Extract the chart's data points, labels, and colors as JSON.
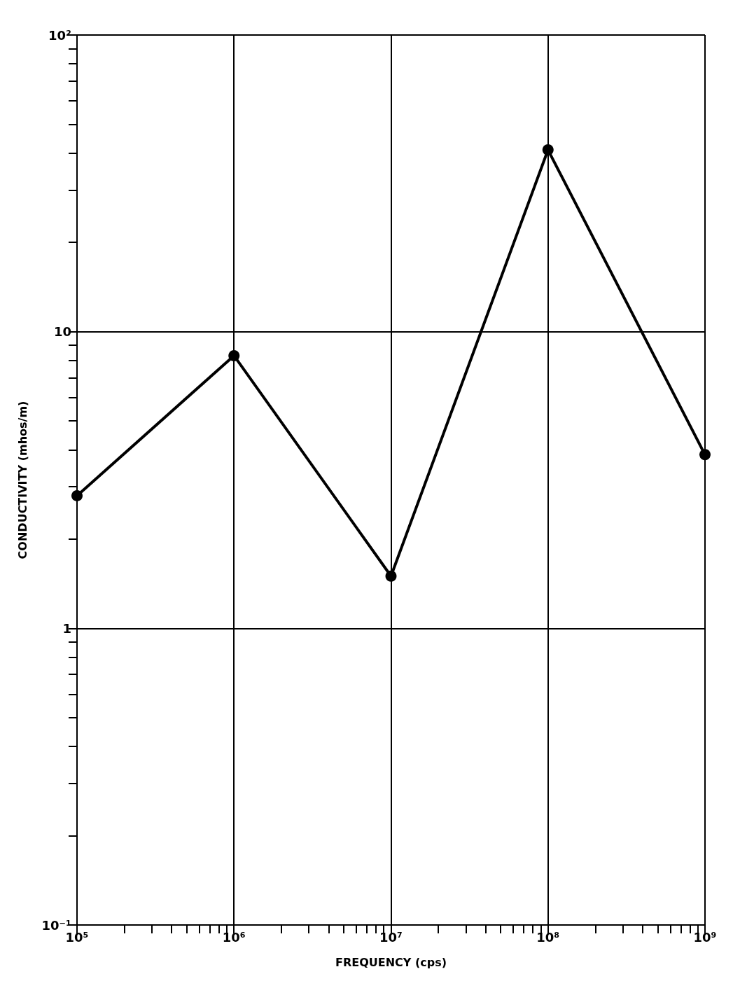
{
  "chart_data": {
    "type": "line",
    "xlabel": "FREQUENCY (cps)",
    "ylabel": "CONDUCTIVITY (mhos/m)",
    "x": [
      100000,
      1000000,
      10000000,
      100000000,
      1000000000
    ],
    "series": [
      {
        "color": "#000000",
        "values": [
          2.8,
          8.3,
          1.5,
          41,
          3.85
        ]
      }
    ],
    "log": "xy",
    "grid": true,
    "marker": "circle",
    "line_style": "solid",
    "xlim": [
      100000,
      1000000000
    ],
    "ylim": [
      0.1,
      100
    ],
    "xticks": [
      {
        "value": 100000,
        "label": "10⁵"
      },
      {
        "value": 200000,
        "label": null
      },
      {
        "value": 300000,
        "label": null
      },
      {
        "value": 400000,
        "label": null
      },
      {
        "value": 500000,
        "label": null
      },
      {
        "value": 600000,
        "label": null
      },
      {
        "value": 700000,
        "label": null
      },
      {
        "value": 800000,
        "label": null
      },
      {
        "value": 900000,
        "label": null
      },
      {
        "value": 1000000,
        "label": "10⁶"
      },
      {
        "value": 2000000,
        "label": null
      },
      {
        "value": 3000000,
        "label": null
      },
      {
        "value": 4000000,
        "label": null
      },
      {
        "value": 5000000,
        "label": null
      },
      {
        "value": 6000000,
        "label": null
      },
      {
        "value": 7000000,
        "label": null
      },
      {
        "value": 8000000,
        "label": null
      },
      {
        "value": 9000000,
        "label": null
      },
      {
        "value": 10000000,
        "label": "10⁷"
      },
      {
        "value": 20000000,
        "label": null
      },
      {
        "value": 30000000,
        "label": null
      },
      {
        "value": 40000000,
        "label": null
      },
      {
        "value": 50000000,
        "label": null
      },
      {
        "value": 60000000,
        "label": null
      },
      {
        "value": 70000000,
        "label": null
      },
      {
        "value": 80000000,
        "label": null
      },
      {
        "value": 90000000,
        "label": null
      },
      {
        "value": 100000000,
        "label": "10⁸"
      },
      {
        "value": 200000000,
        "label": null
      },
      {
        "value": 300000000,
        "label": null
      },
      {
        "value": 400000000,
        "label": null
      },
      {
        "value": 500000000,
        "label": null
      },
      {
        "value": 600000000,
        "label": null
      },
      {
        "value": 700000000,
        "label": null
      },
      {
        "value": 800000000,
        "label": null
      },
      {
        "value": 900000000,
        "label": null
      },
      {
        "value": 1000000000,
        "label": "10⁹"
      }
    ],
    "yticks": [
      {
        "value": 0.1,
        "label": "10⁻¹"
      },
      {
        "value": 0.2,
        "label": null
      },
      {
        "value": 0.3,
        "label": null
      },
      {
        "value": 0.4,
        "label": null
      },
      {
        "value": 0.5,
        "label": null
      },
      {
        "value": 0.6,
        "label": null
      },
      {
        "value": 0.7,
        "label": null
      },
      {
        "value": 0.8,
        "label": null
      },
      {
        "value": 0.9,
        "label": null
      },
      1,
      {
        "value": 2,
        "label": null
      },
      {
        "value": 3,
        "label": null
      },
      {
        "value": 4,
        "label": null
      },
      {
        "value": 5,
        "label": null
      },
      {
        "value": 6,
        "label": null
      },
      {
        "value": 7,
        "label": null
      },
      {
        "value": 8,
        "label": null
      },
      {
        "value": 9,
        "label": null
      },
      10,
      {
        "value": 20,
        "label": null
      },
      {
        "value": 30,
        "label": null
      },
      {
        "value": 40,
        "label": null
      },
      {
        "value": 50,
        "label": null
      },
      {
        "value": 60,
        "label": null
      },
      {
        "value": 70,
        "label": null
      },
      {
        "value": 80,
        "label": null
      },
      {
        "value": 90,
        "label": null
      },
      {
        "value": 100,
        "label": "10²"
      }
    ]
  }
}
